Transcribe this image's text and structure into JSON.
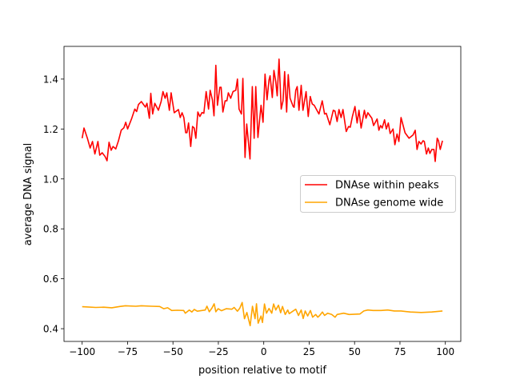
{
  "chart_data": {
    "type": "line",
    "title": "",
    "xlabel": "position relative to motif",
    "ylabel": "average DNA signal",
    "xlim": [
      -110,
      108.5
    ],
    "ylim": [
      0.349,
      1.531
    ],
    "xticks": [
      -100,
      -75,
      -50,
      -25,
      0,
      25,
      50,
      75,
      100
    ],
    "xtick_labels": [
      "−100",
      "−75",
      "−50",
      "−25",
      "0",
      "25",
      "50",
      "75",
      "100"
    ],
    "yticks": [
      0.4,
      0.6,
      0.8,
      1.0,
      1.2,
      1.4
    ],
    "ytick_labels": [
      "0.4",
      "0.6",
      "0.8",
      "1.0",
      "1.2",
      "1.4"
    ],
    "grid": false,
    "legend_position": "center-right",
    "series": [
      {
        "name": "DNAse within peaks",
        "color": "#ff0000",
        "points": [
          [
            -100,
            1.163
          ],
          [
            -99,
            1.204
          ],
          [
            -97,
            1.16
          ],
          [
            -95.6,
            1.124
          ],
          [
            -94.3,
            1.15
          ],
          [
            -93,
            1.1
          ],
          [
            -91.3,
            1.15
          ],
          [
            -90.3,
            1.095
          ],
          [
            -89,
            1.105
          ],
          [
            -87.4,
            1.09
          ],
          [
            -86.3,
            1.073
          ],
          [
            -85.2,
            1.147
          ],
          [
            -84,
            1.115
          ],
          [
            -83,
            1.13
          ],
          [
            -81.5,
            1.12
          ],
          [
            -80,
            1.153
          ],
          [
            -78.5,
            1.195
          ],
          [
            -77,
            1.205
          ],
          [
            -76,
            1.227
          ],
          [
            -75,
            1.2
          ],
          [
            -72.7,
            1.243
          ],
          [
            -71,
            1.28
          ],
          [
            -70,
            1.27
          ],
          [
            -69,
            1.298
          ],
          [
            -67.4,
            1.31
          ],
          [
            -65.2,
            1.288
          ],
          [
            -64.3,
            1.303
          ],
          [
            -63,
            1.243
          ],
          [
            -62.2,
            1.343
          ],
          [
            -61.2,
            1.26
          ],
          [
            -60,
            1.303
          ],
          [
            -58,
            1.275
          ],
          [
            -56.5,
            1.31
          ],
          [
            -55.5,
            1.35
          ],
          [
            -54.3,
            1.323
          ],
          [
            -53.4,
            1.345
          ],
          [
            -52,
            1.275
          ],
          [
            -51,
            1.345
          ],
          [
            -49.3,
            1.265
          ],
          [
            -47,
            1.278
          ],
          [
            -46,
            1.246
          ],
          [
            -45,
            1.265
          ],
          [
            -44,
            1.246
          ],
          [
            -43,
            1.185
          ],
          [
            -42.3,
            1.185
          ],
          [
            -41.4,
            1.224
          ],
          [
            -40.2,
            1.13
          ],
          [
            -39.2,
            1.21
          ],
          [
            -38.3,
            1.204
          ],
          [
            -37.4,
            1.163
          ],
          [
            -36.3,
            1.268
          ],
          [
            -35.2,
            1.25
          ],
          [
            -34,
            1.266
          ],
          [
            -33,
            1.263
          ],
          [
            -31.7,
            1.35
          ],
          [
            -30.4,
            1.28
          ],
          [
            -29.5,
            1.355
          ],
          [
            -28.3,
            1.317
          ],
          [
            -27.4,
            1.253
          ],
          [
            -26.4,
            1.455
          ],
          [
            -25.5,
            1.295
          ],
          [
            -24.2,
            1.367
          ],
          [
            -23.5,
            1.367
          ],
          [
            -22.5,
            1.268
          ],
          [
            -21.3,
            1.313
          ],
          [
            -20.3,
            1.313
          ],
          [
            -19.5,
            1.345
          ],
          [
            -18.2,
            1.323
          ],
          [
            -16.9,
            1.35
          ],
          [
            -15.4,
            1.355
          ],
          [
            -14.5,
            1.4
          ],
          [
            -13.6,
            1.28
          ],
          [
            -12.3,
            1.26
          ],
          [
            -11.5,
            1.403
          ],
          [
            -10.3,
            1.086
          ],
          [
            -9.4,
            1.22
          ],
          [
            -7.6,
            1.08
          ],
          [
            -6.3,
            1.37
          ],
          [
            -5.3,
            1.163
          ],
          [
            -4.4,
            1.37
          ],
          [
            -3.2,
            1.166
          ],
          [
            -1.5,
            1.295
          ],
          [
            -0.4,
            1.227
          ],
          [
            0.7,
            1.42
          ],
          [
            1.8,
            1.317
          ],
          [
            2.9,
            1.397
          ],
          [
            3.5,
            1.413
          ],
          [
            4.7,
            1.326
          ],
          [
            5.6,
            1.435
          ],
          [
            6.6,
            1.39
          ],
          [
            7.4,
            1.333
          ],
          [
            8.4,
            1.48
          ],
          [
            9.6,
            1.28
          ],
          [
            10.6,
            1.313
          ],
          [
            11.5,
            1.43
          ],
          [
            12.6,
            1.268
          ],
          [
            13.5,
            1.418
          ],
          [
            14.5,
            1.323
          ],
          [
            16.2,
            1.29
          ],
          [
            16.7,
            1.287
          ],
          [
            17.6,
            1.355
          ],
          [
            18.4,
            1.37
          ],
          [
            19.4,
            1.275
          ],
          [
            20.6,
            1.375
          ],
          [
            21.6,
            1.275
          ],
          [
            23.3,
            1.35
          ],
          [
            24.5,
            1.25
          ],
          [
            25.6,
            1.33
          ],
          [
            26.7,
            1.3
          ],
          [
            27.8,
            1.295
          ],
          [
            30.4,
            1.26
          ],
          [
            32.2,
            1.313
          ],
          [
            33.5,
            1.26
          ],
          [
            34.4,
            1.263
          ],
          [
            36.4,
            1.217
          ],
          [
            38.3,
            1.275
          ],
          [
            39.2,
            1.272
          ],
          [
            40.4,
            1.23
          ],
          [
            41.4,
            1.278
          ],
          [
            42.6,
            1.246
          ],
          [
            43.6,
            1.278
          ],
          [
            45.4,
            1.19
          ],
          [
            46.7,
            1.21
          ],
          [
            47.6,
            1.207
          ],
          [
            48.8,
            1.25
          ],
          [
            50.2,
            1.29
          ],
          [
            51.4,
            1.224
          ],
          [
            52.4,
            1.275
          ],
          [
            53.6,
            1.204
          ],
          [
            55.4,
            1.275
          ],
          [
            56.3,
            1.243
          ],
          [
            57.3,
            1.265
          ],
          [
            59.5,
            1.243
          ],
          [
            60.5,
            1.214
          ],
          [
            62.4,
            1.24
          ],
          [
            63.4,
            1.195
          ],
          [
            64.3,
            1.214
          ],
          [
            65.2,
            1.204
          ],
          [
            66.5,
            1.237
          ],
          [
            67.5,
            1.2
          ],
          [
            68.6,
            1.224
          ],
          [
            69.6,
            1.182
          ],
          [
            71.2,
            1.2
          ],
          [
            72.2,
            1.137
          ],
          [
            73.4,
            1.18
          ],
          [
            74.4,
            1.15
          ],
          [
            75.6,
            1.246
          ],
          [
            77.8,
            1.185
          ],
          [
            80,
            1.163
          ],
          [
            82.2,
            1.176
          ],
          [
            83.4,
            1.195
          ],
          [
            84.4,
            1.118
          ],
          [
            85.4,
            1.15
          ],
          [
            86.6,
            1.14
          ],
          [
            87.7,
            1.153
          ],
          [
            88.4,
            1.15
          ],
          [
            89.6,
            1.1
          ],
          [
            90.6,
            1.124
          ],
          [
            91.5,
            1.102
          ],
          [
            92.5,
            1.118
          ],
          [
            93.7,
            1.118
          ],
          [
            94.4,
            1.07
          ],
          [
            95.5,
            1.163
          ],
          [
            96.2,
            1.153
          ],
          [
            97.2,
            1.118
          ],
          [
            98.4,
            1.153
          ]
        ]
      },
      {
        "name": "DNAse genome wide",
        "color": "#ffa500",
        "points": [
          [
            -100,
            0.488
          ],
          [
            -96.9,
            0.487
          ],
          [
            -92.5,
            0.485
          ],
          [
            -88.1,
            0.486
          ],
          [
            -83.7,
            0.484
          ],
          [
            -79.3,
            0.489
          ],
          [
            -76.2,
            0.492
          ],
          [
            -70.5,
            0.49
          ],
          [
            -67.4,
            0.492
          ],
          [
            -61.7,
            0.49
          ],
          [
            -57.3,
            0.489
          ],
          [
            -55.1,
            0.48
          ],
          [
            -52.9,
            0.484
          ],
          [
            -50.7,
            0.473
          ],
          [
            -47.6,
            0.474
          ],
          [
            -44.1,
            0.473
          ],
          [
            -43.2,
            0.462
          ],
          [
            -41,
            0.475
          ],
          [
            -39.6,
            0.467
          ],
          [
            -38.3,
            0.477
          ],
          [
            -36.6,
            0.47
          ],
          [
            -32.2,
            0.475
          ],
          [
            -31.3,
            0.49
          ],
          [
            -30,
            0.468
          ],
          [
            -28.6,
            0.482
          ],
          [
            -27.3,
            0.5
          ],
          [
            -26.4,
            0.468
          ],
          [
            -25.1,
            0.48
          ],
          [
            -23.3,
            0.472
          ],
          [
            -20.7,
            0.48
          ],
          [
            -17.6,
            0.478
          ],
          [
            -16.3,
            0.485
          ],
          [
            -14.5,
            0.47
          ],
          [
            -13.2,
            0.482
          ],
          [
            -11.9,
            0.505
          ],
          [
            -10.6,
            0.44
          ],
          [
            -9.3,
            0.465
          ],
          [
            -7.5,
            0.412
          ],
          [
            -6.2,
            0.49
          ],
          [
            -4.8,
            0.44
          ],
          [
            -4,
            0.5
          ],
          [
            -3.1,
            0.422
          ],
          [
            -1.5,
            0.451
          ],
          [
            -0.7,
            0.425
          ],
          [
            0.4,
            0.499
          ],
          [
            1.5,
            0.462
          ],
          [
            2.9,
            0.481
          ],
          [
            4.4,
            0.462
          ],
          [
            5.4,
            0.499
          ],
          [
            6.6,
            0.475
          ],
          [
            8.1,
            0.494
          ],
          [
            9.3,
            0.464
          ],
          [
            10.3,
            0.489
          ],
          [
            11.8,
            0.457
          ],
          [
            13.2,
            0.475
          ],
          [
            14,
            0.46
          ],
          [
            17.6,
            0.478
          ],
          [
            19.1,
            0.453
          ],
          [
            20.6,
            0.475
          ],
          [
            21.7,
            0.441
          ],
          [
            22.8,
            0.471
          ],
          [
            24.2,
            0.451
          ],
          [
            25.7,
            0.473
          ],
          [
            26.9,
            0.446
          ],
          [
            28.6,
            0.457
          ],
          [
            29.8,
            0.446
          ],
          [
            30.8,
            0.453
          ],
          [
            32.3,
            0.467
          ],
          [
            33.5,
            0.453
          ],
          [
            35.2,
            0.462
          ],
          [
            37.4,
            0.457
          ],
          [
            39.3,
            0.446
          ],
          [
            40.4,
            0.457
          ],
          [
            44,
            0.462
          ],
          [
            47,
            0.457
          ],
          [
            52.9,
            0.459
          ],
          [
            55.1,
            0.471
          ],
          [
            57.3,
            0.475
          ],
          [
            60.2,
            0.473
          ],
          [
            64.6,
            0.473
          ],
          [
            68.3,
            0.475
          ],
          [
            71.9,
            0.471
          ],
          [
            75.6,
            0.471
          ],
          [
            80.7,
            0.467
          ],
          [
            86.7,
            0.465
          ],
          [
            92.5,
            0.467
          ],
          [
            98.4,
            0.471
          ]
        ]
      }
    ]
  }
}
